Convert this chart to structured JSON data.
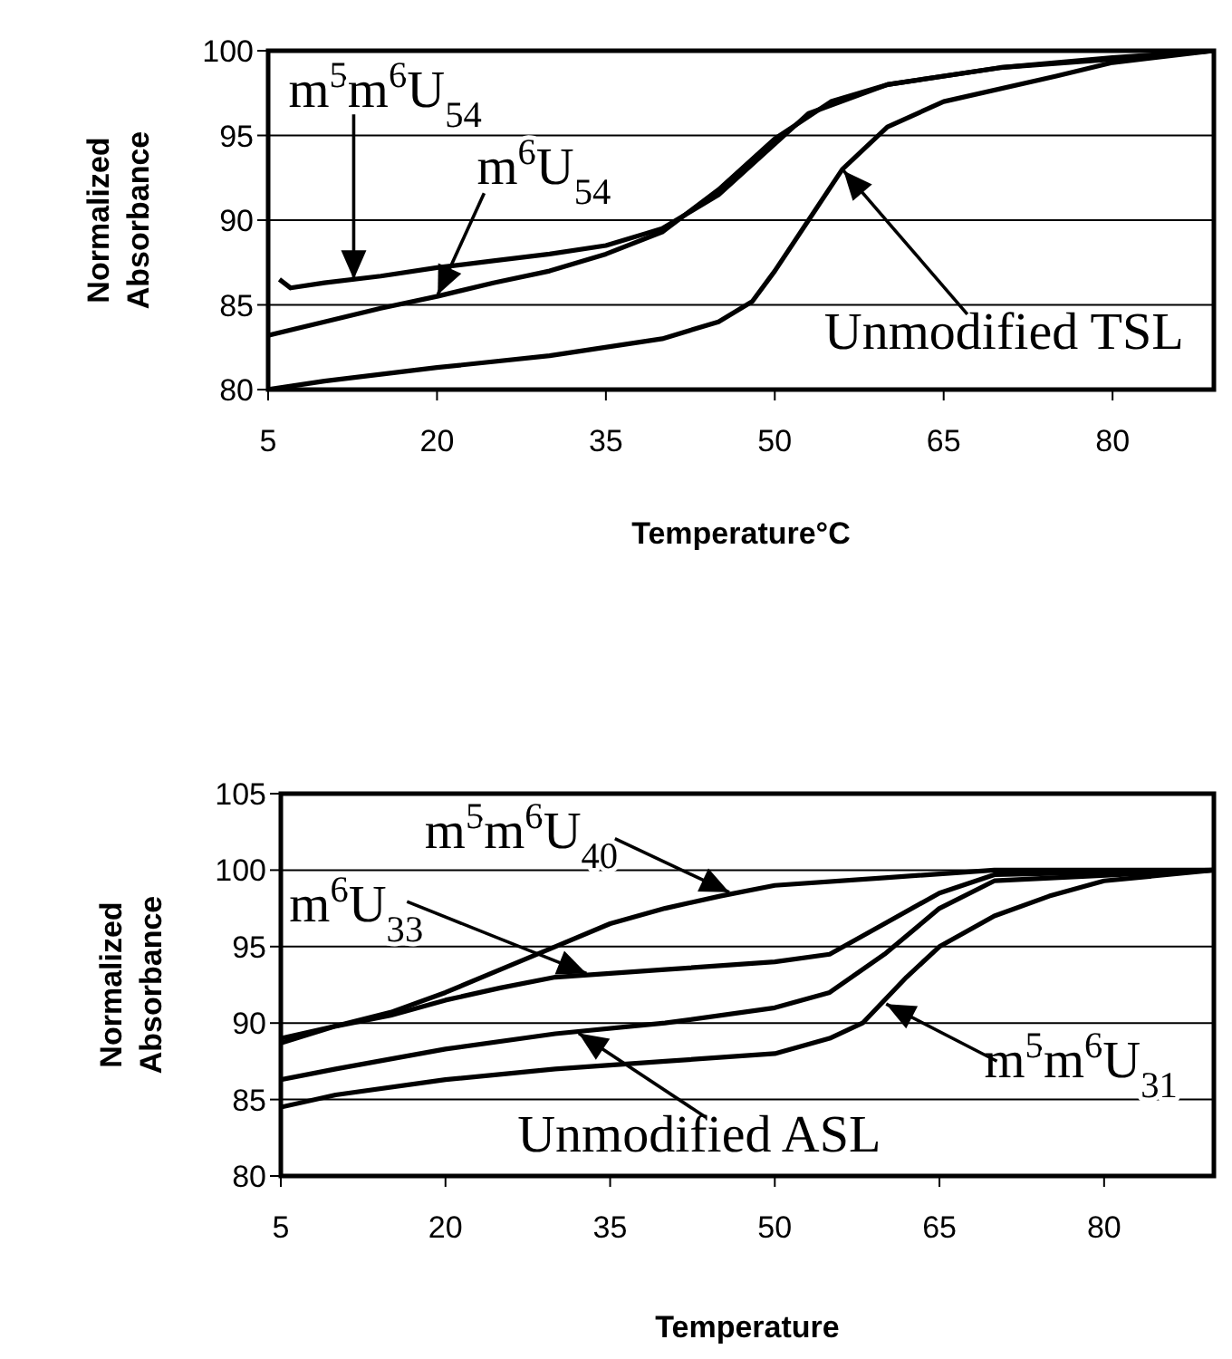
{
  "chart_data": [
    {
      "type": "line",
      "xlabel": "Temperature°C",
      "ylabel": "Normalized Absorbance",
      "xlim": [
        5,
        89
      ],
      "xticks": [
        5,
        20,
        35,
        50,
        65,
        80
      ],
      "ylim": [
        80,
        100
      ],
      "yticks": [
        80,
        85,
        90,
        95,
        100
      ],
      "grid": "y",
      "marker": "none",
      "series": [
        {
          "color": "#000000",
          "x": [
            6,
            7,
            10,
            15,
            20,
            25,
            30,
            35,
            40,
            45,
            50,
            53,
            60,
            70,
            80,
            89
          ],
          "values": [
            86.5,
            86,
            86.3,
            86.7,
            87.2,
            87.6,
            88,
            88.5,
            89.5,
            91.5,
            94.5,
            96.3,
            98,
            99,
            99.5,
            100
          ]
        },
        {
          "color": "#000000",
          "x": [
            5,
            10,
            15,
            20,
            25,
            30,
            35,
            40,
            45,
            50,
            55,
            60,
            70,
            80,
            89
          ],
          "values": [
            83.2,
            84,
            84.8,
            85.5,
            86.3,
            87,
            88,
            89.3,
            91.8,
            94.8,
            97,
            98,
            99,
            99.6,
            100
          ]
        },
        {
          "color": "#000000",
          "x": [
            5,
            10,
            20,
            30,
            40,
            45,
            48,
            50,
            53,
            56,
            60,
            65,
            75,
            80,
            89
          ],
          "values": [
            80,
            80.5,
            81.3,
            82,
            83,
            84,
            85.2,
            87,
            90,
            93,
            95.5,
            97,
            98.5,
            99.3,
            100
          ]
        }
      ],
      "annotations": [
        {
          "text": "m$^{5}$m$^{6}$U$_{54}$",
          "x": 12.6,
          "y": 86.4
        },
        {
          "text": "m$^{6}$U$_{54}$",
          "x": 20,
          "y": 85.5
        },
        {
          "text": "Unmodified TSL",
          "x": 56,
          "y": 93
        }
      ]
    },
    {
      "type": "line",
      "xlabel": "Temperature",
      "ylabel": "Normalized Absorbance",
      "xlim": [
        5,
        90
      ],
      "xticks": [
        5,
        20,
        35,
        50,
        65,
        80
      ],
      "ylim": [
        80,
        105
      ],
      "yticks": [
        80,
        85,
        90,
        95,
        100,
        105
      ],
      "grid": "y",
      "marker": "none",
      "series": [
        {
          "color": "#000000",
          "x": [
            5,
            10,
            15,
            20,
            25,
            30,
            35,
            40,
            45,
            50,
            60,
            70,
            90
          ],
          "values": [
            89,
            89.8,
            90.7,
            92,
            93.5,
            95,
            96.5,
            97.5,
            98.3,
            99,
            99.5,
            100,
            100
          ]
        },
        {
          "color": "#000000",
          "x": [
            5,
            10,
            15,
            20,
            25,
            30,
            40,
            50,
            55,
            60,
            65,
            70,
            90
          ],
          "values": [
            88.7,
            89.8,
            90.5,
            91.5,
            92.3,
            93,
            93.5,
            94,
            94.5,
            96.5,
            98.5,
            99.7,
            100
          ]
        },
        {
          "color": "#000000",
          "x": [
            5,
            10,
            20,
            30,
            40,
            50,
            55,
            60,
            65,
            70,
            90
          ],
          "values": [
            86.3,
            87,
            88.3,
            89.3,
            90,
            91,
            92,
            94.5,
            97.5,
            99.3,
            100
          ]
        },
        {
          "color": "#000000",
          "x": [
            5,
            10,
            20,
            30,
            40,
            50,
            55,
            58,
            62,
            65,
            70,
            75,
            80,
            90
          ],
          "values": [
            84.5,
            85.3,
            86.3,
            87,
            87.5,
            88,
            89,
            90,
            93,
            95,
            97,
            98.3,
            99.3,
            100
          ]
        }
      ],
      "annotations": [
        {
          "text": "m$^{5}$m$^{6}$U$_{40}$",
          "x": 46,
          "y": 98.5
        },
        {
          "text": "m$^{6}$U$_{33}$",
          "x": 33,
          "y": 93.2
        },
        {
          "text": "m$^{5}$m$^{6}$U$_{31}$",
          "x": 60,
          "y": 91.3
        },
        {
          "text": "Unmodified ASL",
          "x": 32,
          "y": 89.4
        }
      ]
    }
  ]
}
